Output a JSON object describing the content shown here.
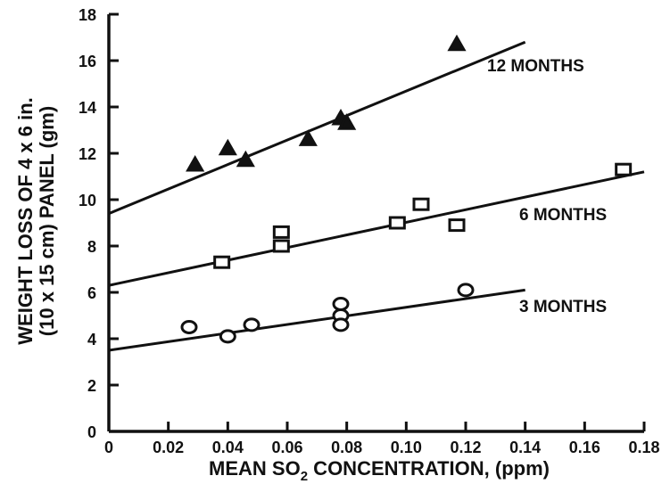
{
  "chart_data": {
    "type": "scatter",
    "title": "",
    "xlabel": "MEAN SO",
    "xlabel_subscript": "2",
    "xlabel_suffix": " CONCENTRATION, (ppm)",
    "ylabel_line1": "WEIGHT LOSS OF 4 x 6 in.",
    "ylabel_line2": "(10 x 15 cm) PANEL (gm)",
    "xlim": [
      0,
      0.18
    ],
    "ylim": [
      0,
      18
    ],
    "x_ticks": [
      "0",
      "0.02",
      "0.04",
      "0.06",
      "0.08",
      "0.10",
      "0.12",
      "0.14",
      "0.16",
      "0.18"
    ],
    "y_ticks": [
      "0",
      "2",
      "4",
      "6",
      "8",
      "10",
      "12",
      "14",
      "16",
      "18"
    ],
    "grid": false,
    "legend": "none (series labeled inline on the right)",
    "series": [
      {
        "name": "12 MONTHS",
        "marker": "triangle-filled",
        "points": [
          {
            "x": 0.029,
            "y": 11.5
          },
          {
            "x": 0.04,
            "y": 12.2
          },
          {
            "x": 0.046,
            "y": 11.7
          },
          {
            "x": 0.067,
            "y": 12.6
          },
          {
            "x": 0.078,
            "y": 13.5
          },
          {
            "x": 0.08,
            "y": 13.3
          },
          {
            "x": 0.117,
            "y": 16.7
          }
        ],
        "trend": {
          "x": [
            0,
            0.14
          ],
          "y": [
            9.4,
            16.8
          ]
        }
      },
      {
        "name": "6 MONTHS",
        "marker": "square-open",
        "points": [
          {
            "x": 0.038,
            "y": 7.3
          },
          {
            "x": 0.058,
            "y": 8.6
          },
          {
            "x": 0.058,
            "y": 8.0
          },
          {
            "x": 0.097,
            "y": 9.0
          },
          {
            "x": 0.105,
            "y": 9.8
          },
          {
            "x": 0.117,
            "y": 8.9
          },
          {
            "x": 0.173,
            "y": 11.3
          }
        ],
        "trend": {
          "x": [
            0,
            0.18
          ],
          "y": [
            6.3,
            11.2
          ]
        }
      },
      {
        "name": "3 MONTHS",
        "marker": "circle-open",
        "points": [
          {
            "x": 0.027,
            "y": 4.5
          },
          {
            "x": 0.04,
            "y": 4.1
          },
          {
            "x": 0.048,
            "y": 4.6
          },
          {
            "x": 0.078,
            "y": 5.5
          },
          {
            "x": 0.078,
            "y": 5.0
          },
          {
            "x": 0.078,
            "y": 4.6
          },
          {
            "x": 0.12,
            "y": 6.1
          }
        ],
        "trend": {
          "x": [
            0,
            0.14
          ],
          "y": [
            3.5,
            6.1
          ]
        }
      }
    ],
    "colors": {
      "ink": "#111111",
      "background": "#ffffff"
    }
  }
}
